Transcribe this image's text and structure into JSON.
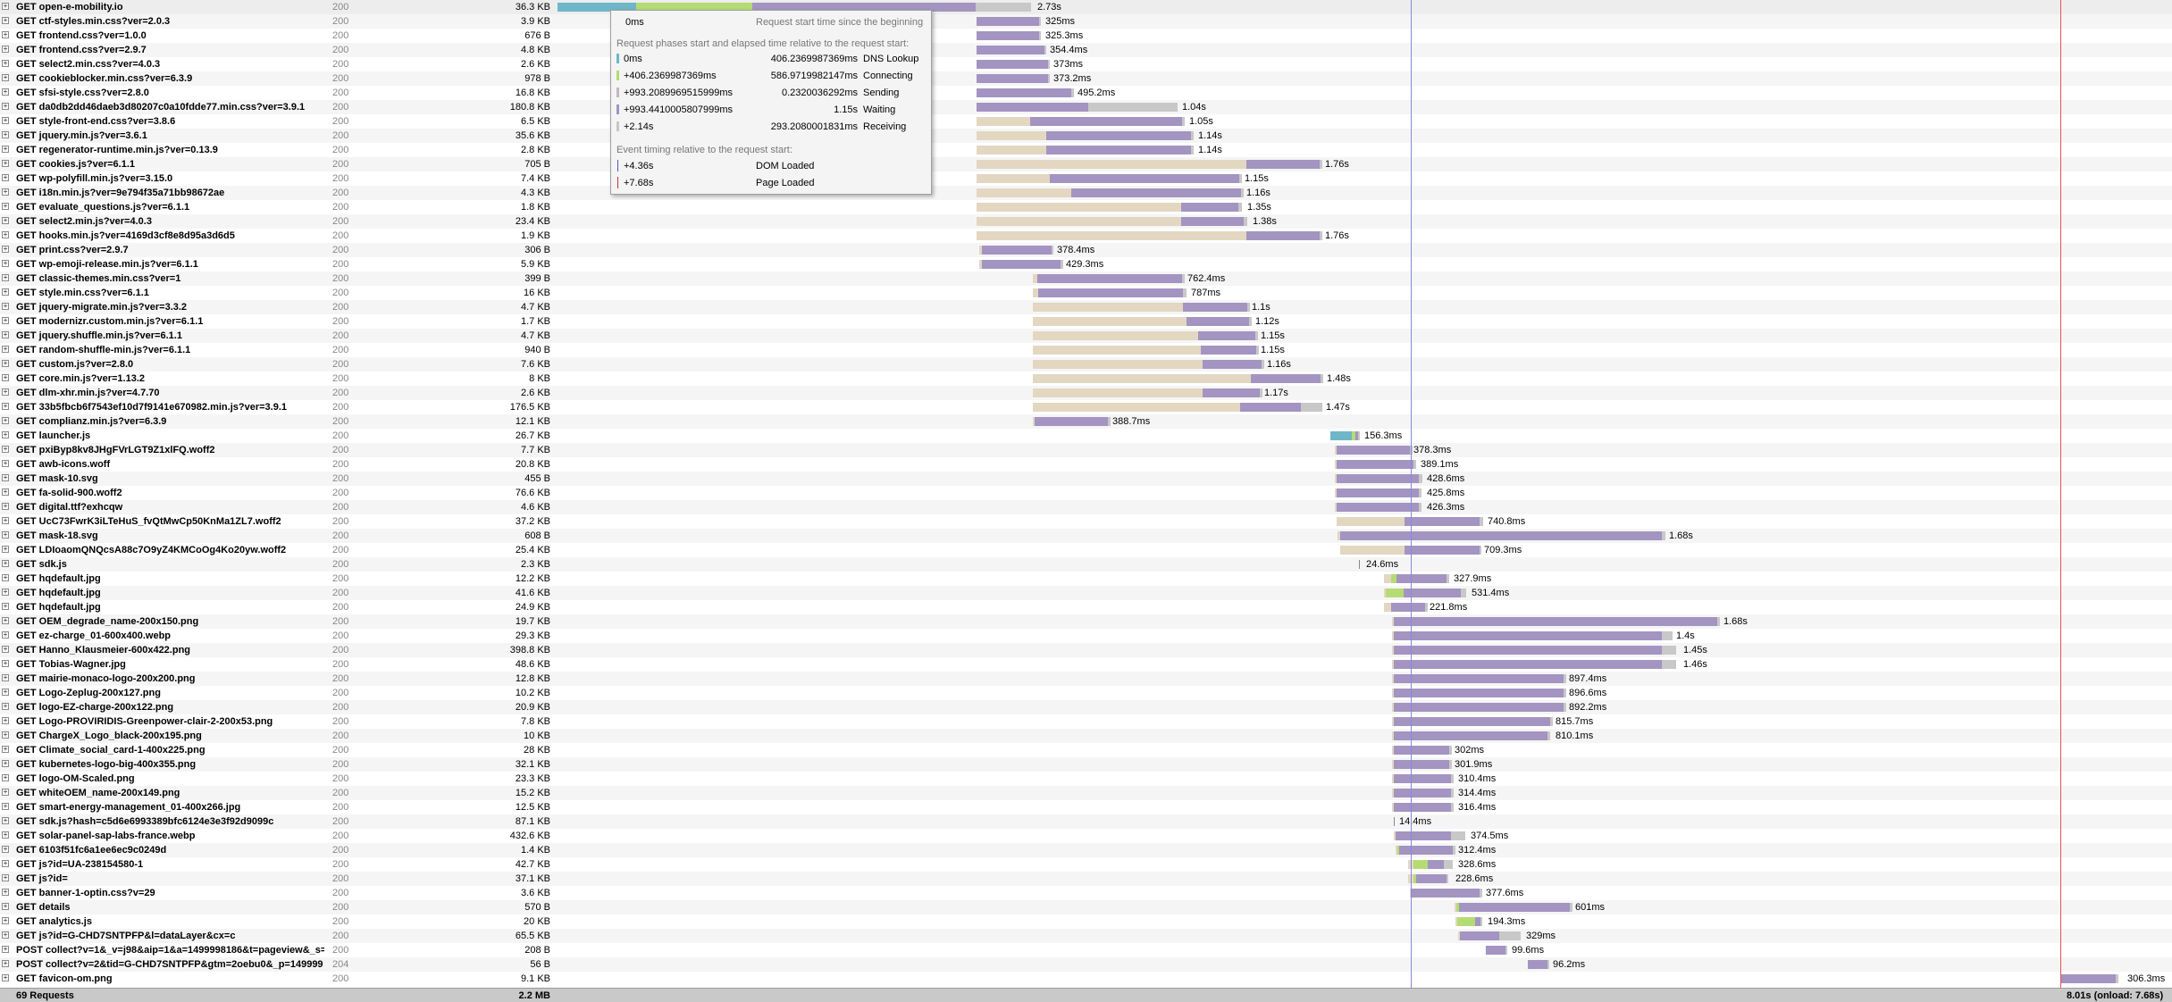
{
  "requests": [
    {
      "url": "GET open-e-mobility.io",
      "status": "200",
      "size": "36.3 KB",
      "time": "2.73s",
      "highlighted": true
    },
    {
      "url": "GET ctf-styles.min.css?ver=2.0.3",
      "status": "200",
      "size": "3.9 KB",
      "time": "325ms"
    },
    {
      "url": "GET frontend.css?ver=1.0.0",
      "status": "200",
      "size": "676 B",
      "time": "325.3ms"
    },
    {
      "url": "GET frontend.css?ver=2.9.7",
      "status": "200",
      "size": "4.8 KB",
      "time": "354.4ms"
    },
    {
      "url": "GET select2.min.css?ver=4.0.3",
      "status": "200",
      "size": "2.6 KB",
      "time": "373ms"
    },
    {
      "url": "GET cookieblocker.min.css?ver=6.3.9",
      "status": "200",
      "size": "978 B",
      "time": "373.2ms"
    },
    {
      "url": "GET sfsi-style.css?ver=2.8.0",
      "status": "200",
      "size": "16.8 KB",
      "time": "495.2ms"
    },
    {
      "url": "GET da0db2dd46daeb3d80207c0a10fdde77.min.css?ver=3.9.1",
      "status": "200",
      "size": "180.8 KB",
      "time": "1.04s"
    },
    {
      "url": "GET style-front-end.css?ver=3.8.6",
      "status": "200",
      "size": "6.5 KB",
      "time": "1.05s"
    },
    {
      "url": "GET jquery.min.js?ver=3.6.1",
      "status": "200",
      "size": "35.6 KB",
      "time": "1.14s"
    },
    {
      "url": "GET regenerator-runtime.min.js?ver=0.13.9",
      "status": "200",
      "size": "2.8 KB",
      "time": "1.14s"
    },
    {
      "url": "GET cookies.js?ver=6.1.1",
      "status": "200",
      "size": "705 B",
      "time": "1.76s"
    },
    {
      "url": "GET wp-polyfill.min.js?ver=3.15.0",
      "status": "200",
      "size": "7.4 KB",
      "time": "1.15s"
    },
    {
      "url": "GET i18n.min.js?ver=9e794f35a71bb98672ae",
      "status": "200",
      "size": "4.3 KB",
      "time": "1.16s"
    },
    {
      "url": "GET evaluate_questions.js?ver=6.1.1",
      "status": "200",
      "size": "1.8 KB",
      "time": "1.35s"
    },
    {
      "url": "GET select2.min.js?ver=4.0.3",
      "status": "200",
      "size": "23.4 KB",
      "time": "1.38s"
    },
    {
      "url": "GET hooks.min.js?ver=4169d3cf8e8d95a3d6d5",
      "status": "200",
      "size": "1.9 KB",
      "time": "1.76s"
    },
    {
      "url": "GET print.css?ver=2.9.7",
      "status": "200",
      "size": "306 B",
      "time": "378.4ms"
    },
    {
      "url": "GET wp-emoji-release.min.js?ver=6.1.1",
      "status": "200",
      "size": "5.9 KB",
      "time": "429.3ms"
    },
    {
      "url": "GET classic-themes.min.css?ver=1",
      "status": "200",
      "size": "399 B",
      "time": "762.4ms"
    },
    {
      "url": "GET style.min.css?ver=6.1.1",
      "status": "200",
      "size": "16 KB",
      "time": "787ms"
    },
    {
      "url": "GET jquery-migrate.min.js?ver=3.3.2",
      "status": "200",
      "size": "4.7 KB",
      "time": "1.1s"
    },
    {
      "url": "GET modernizr.custom.min.js?ver=6.1.1",
      "status": "200",
      "size": "1.7 KB",
      "time": "1.12s"
    },
    {
      "url": "GET jquery.shuffle.min.js?ver=6.1.1",
      "status": "200",
      "size": "4.7 KB",
      "time": "1.15s"
    },
    {
      "url": "GET random-shuffle-min.js?ver=6.1.1",
      "status": "200",
      "size": "940 B",
      "time": "1.15s"
    },
    {
      "url": "GET custom.js?ver=2.8.0",
      "status": "200",
      "size": "7.6 KB",
      "time": "1.16s"
    },
    {
      "url": "GET core.min.js?ver=1.13.2",
      "status": "200",
      "size": "8 KB",
      "time": "1.48s"
    },
    {
      "url": "GET dlm-xhr.min.js?ver=4.7.70",
      "status": "200",
      "size": "2.6 KB",
      "time": "1.17s"
    },
    {
      "url": "GET 33b5fbcb6f7543ef10d7f9141e670982.min.js?ver=3.9.1",
      "status": "200",
      "size": "176.5 KB",
      "time": "1.47s"
    },
    {
      "url": "GET complianz.min.js?ver=6.3.9",
      "status": "200",
      "size": "12.1 KB",
      "time": "388.7ms"
    },
    {
      "url": "GET launcher.js",
      "status": "200",
      "size": "26.7 KB",
      "time": "156.3ms"
    },
    {
      "url": "GET pxiByp8kv8JHgFVrLGT9Z1xlFQ.woff2",
      "status": "200",
      "size": "7.7 KB",
      "time": "378.3ms"
    },
    {
      "url": "GET awb-icons.woff",
      "status": "200",
      "size": "20.8 KB",
      "time": "389.1ms"
    },
    {
      "url": "GET mask-10.svg",
      "status": "200",
      "size": "455 B",
      "time": "428.6ms"
    },
    {
      "url": "GET fa-solid-900.woff2",
      "status": "200",
      "size": "76.6 KB",
      "time": "425.8ms"
    },
    {
      "url": "GET digital.ttf?exhcqw",
      "status": "200",
      "size": "4.6 KB",
      "time": "426.3ms"
    },
    {
      "url": "GET UcC73FwrK3iLTeHuS_fvQtMwCp50KnMa1ZL7.woff2",
      "status": "200",
      "size": "37.2 KB",
      "time": "740.8ms"
    },
    {
      "url": "GET mask-18.svg",
      "status": "200",
      "size": "608 B",
      "time": "1.68s"
    },
    {
      "url": "GET LDIoaomQNQcsA88c7O9yZ4KMCoOg4Ko20yw.woff2",
      "status": "200",
      "size": "25.4 KB",
      "time": "709.3ms"
    },
    {
      "url": "GET sdk.js",
      "status": "200",
      "size": "2.3 KB",
      "time": "24.6ms"
    },
    {
      "url": "GET hqdefault.jpg",
      "status": "200",
      "size": "12.2 KB",
      "time": "327.9ms"
    },
    {
      "url": "GET hqdefault.jpg",
      "status": "200",
      "size": "41.6 KB",
      "time": "531.4ms"
    },
    {
      "url": "GET hqdefault.jpg",
      "status": "200",
      "size": "24.9 KB",
      "time": "221.8ms"
    },
    {
      "url": "GET OEM_degrade_name-200x150.png",
      "status": "200",
      "size": "19.7 KB",
      "time": "1.68s"
    },
    {
      "url": "GET ez-charge_01-600x400.webp",
      "status": "200",
      "size": "29.3 KB",
      "time": "1.4s"
    },
    {
      "url": "GET Hanno_Klausmeier-600x422.png",
      "status": "200",
      "size": "398.8 KB",
      "time": "1.45s"
    },
    {
      "url": "GET Tobias-Wagner.jpg",
      "status": "200",
      "size": "48.6 KB",
      "time": "1.46s"
    },
    {
      "url": "GET mairie-monaco-logo-200x200.png",
      "status": "200",
      "size": "12.8 KB",
      "time": "897.4ms"
    },
    {
      "url": "GET Logo-Zeplug-200x127.png",
      "status": "200",
      "size": "10.2 KB",
      "time": "896.6ms"
    },
    {
      "url": "GET logo-EZ-charge-200x122.png",
      "status": "200",
      "size": "20.9 KB",
      "time": "892.2ms"
    },
    {
      "url": "GET Logo-PROVIRIDIS-Greenpower-clair-2-200x53.png",
      "status": "200",
      "size": "7.8 KB",
      "time": "815.7ms"
    },
    {
      "url": "GET ChargeX_Logo_black-200x195.png",
      "status": "200",
      "size": "10 KB",
      "time": "810.1ms"
    },
    {
      "url": "GET Climate_social_card-1-400x225.png",
      "status": "200",
      "size": "28 KB",
      "time": "302ms"
    },
    {
      "url": "GET kubernetes-logo-big-400x355.png",
      "status": "200",
      "size": "32.1 KB",
      "time": "301.9ms"
    },
    {
      "url": "GET logo-OM-Scaled.png",
      "status": "200",
      "size": "23.3 KB",
      "time": "310.4ms"
    },
    {
      "url": "GET whiteOEM_name-200x149.png",
      "status": "200",
      "size": "15.2 KB",
      "time": "314.4ms"
    },
    {
      "url": "GET smart-energy-management_01-400x266.jpg",
      "status": "200",
      "size": "12.5 KB",
      "time": "316.4ms"
    },
    {
      "url": "GET sdk.js?hash=c5d6e6993389bfc6124e3e3f92d9099c",
      "status": "200",
      "size": "87.1 KB",
      "time": "14.4ms"
    },
    {
      "url": "GET solar-panel-sap-labs-france.webp",
      "status": "200",
      "size": "432.6 KB",
      "time": "374.5ms"
    },
    {
      "url": "GET 6103f51fc6a1ee6ec9c0249d",
      "status": "200",
      "size": "1.4 KB",
      "time": "312.4ms"
    },
    {
      "url": "GET js?id=UA-238154580-1",
      "status": "200",
      "size": "42.7 KB",
      "time": "328.6ms"
    },
    {
      "url": "GET js?id=",
      "status": "200",
      "size": "37.1 KB",
      "time": "228.6ms"
    },
    {
      "url": "GET banner-1-optin.css?v=29",
      "status": "200",
      "size": "3.6 KB",
      "time": "377.6ms"
    },
    {
      "url": "GET details",
      "status": "200",
      "size": "570 B",
      "time": "601ms"
    },
    {
      "url": "GET analytics.js",
      "status": "200",
      "size": "20 KB",
      "time": "194.3ms"
    },
    {
      "url": "GET js?id=G-CHD7SNTPFP&l=dataLayer&cx=c",
      "status": "200",
      "size": "65.5 KB",
      "time": "329ms"
    },
    {
      "url": "POST collect?v=1&_v=j98&aip=1&a=1499998186&t=pageview&_s=",
      "status": "200",
      "size": "208 B",
      "time": "99.6ms"
    },
    {
      "url": "POST collect?v=2&tid=G-CHD7SNTPFP&gtm=2oebu0&_p=149999",
      "status": "204",
      "size": "56 B",
      "time": "96.2ms"
    },
    {
      "url": "GET favicon-om.png",
      "status": "200",
      "size": "9.1 KB",
      "time": "306.3ms"
    }
  ],
  "footer": {
    "count": "69 Requests",
    "total_size": "2.2 MB",
    "timing": "8.01s (onload: 7.68s)"
  },
  "tooltip": {
    "start_value": "0ms",
    "start_caption": "Request start time since the beginning",
    "phases_header": "Request phases start and elapsed time relative to the request start:",
    "phases": [
      {
        "start": "0ms",
        "elapsed": "406.2369987369ms",
        "name": "DNS Lookup",
        "color": "#6fb6c8"
      },
      {
        "start": "+406.2369987369ms",
        "elapsed": "586.9719982147ms",
        "name": "Connecting",
        "color": "#b5db74"
      },
      {
        "start": "+993.2089969515999ms",
        "elapsed": "0.2320036292ms",
        "name": "Sending",
        "color": "#c5b4c9"
      },
      {
        "start": "+993.4410005807999ms",
        "elapsed": "1.15s",
        "name": "Waiting",
        "color": "#a394c2"
      },
      {
        "start": "+2.14s",
        "elapsed": "293.2080001831ms",
        "name": "Receiving",
        "color": "#c8c8c8"
      }
    ],
    "events_header": "Event timing relative to the request start:",
    "events": [
      {
        "time": "+4.36s",
        "name": "DOM Loaded",
        "color": "#5555cc"
      },
      {
        "time": "+7.68s",
        "name": "Page Loaded",
        "color": "#cc3333"
      }
    ]
  },
  "colors": {
    "blocked": "#e3d7c2",
    "dns": "#6fb6c8",
    "connect": "#b5db74",
    "send": "#c5b4c9",
    "wait": "#a394c2",
    "receive": "#c8c8c8",
    "dom_line": "#8888dd",
    "load_line": "#e05555"
  }
}
